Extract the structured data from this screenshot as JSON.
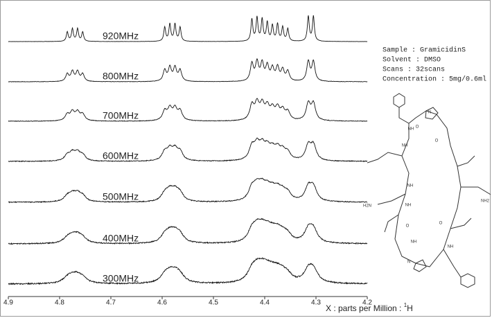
{
  "chart_data": {
    "type": "line",
    "x_label": "X : parts per Million : ",
    "x_label_nucleus": "1",
    "x_label_element": "H",
    "xlim": [
      4.9,
      4.2
    ],
    "xticks": [
      4.9,
      4.8,
      4.7,
      4.6,
      4.5,
      4.4,
      4.3,
      4.2
    ],
    "x": [
      4.785,
      4.775,
      4.765,
      4.755,
      4.595,
      4.585,
      4.575,
      4.565,
      4.425,
      4.415,
      4.405,
      4.395,
      4.385,
      4.375,
      4.365,
      4.355,
      4.315,
      4.305
    ],
    "color": "#111111",
    "series": [
      {
        "name": "920MHz",
        "values": [
          30,
          40,
          40,
          30,
          45,
          55,
          55,
          45,
          70,
          75,
          70,
          60,
          50,
          55,
          45,
          40,
          80,
          80
        ]
      },
      {
        "name": "800MHz",
        "values": [
          30,
          40,
          40,
          30,
          45,
          55,
          55,
          45,
          70,
          75,
          70,
          60,
          50,
          55,
          45,
          40,
          80,
          80
        ]
      },
      {
        "name": "700MHz",
        "values": [
          30,
          40,
          40,
          30,
          45,
          55,
          55,
          45,
          70,
          75,
          70,
          60,
          50,
          55,
          45,
          40,
          80,
          80
        ]
      },
      {
        "name": "600MHz",
        "values": [
          30,
          40,
          40,
          30,
          45,
          55,
          55,
          45,
          70,
          75,
          70,
          60,
          50,
          55,
          45,
          40,
          80,
          80
        ]
      },
      {
        "name": "500MHz",
        "values": [
          30,
          40,
          40,
          30,
          45,
          55,
          55,
          45,
          70,
          75,
          70,
          60,
          50,
          55,
          45,
          40,
          80,
          80
        ]
      },
      {
        "name": "400MHz",
        "values": [
          30,
          40,
          40,
          30,
          45,
          55,
          55,
          45,
          70,
          75,
          70,
          60,
          50,
          55,
          45,
          40,
          80,
          80
        ]
      },
      {
        "name": "300MHz",
        "values": [
          30,
          40,
          40,
          30,
          45,
          55,
          55,
          45,
          70,
          75,
          70,
          60,
          50,
          55,
          45,
          40,
          80,
          80
        ]
      }
    ],
    "sample_info": [
      "Sample : GramicidinS",
      "Solvent : DMSO",
      "Scans : 32scans",
      "Concentration : 5mg/0.6ml"
    ]
  },
  "structure": {
    "labels": [
      "NH",
      "NH",
      "NH",
      "NH",
      "NH",
      "NH",
      "O",
      "O",
      "O",
      "O",
      "NH2",
      "H2N",
      "N",
      "N"
    ]
  }
}
